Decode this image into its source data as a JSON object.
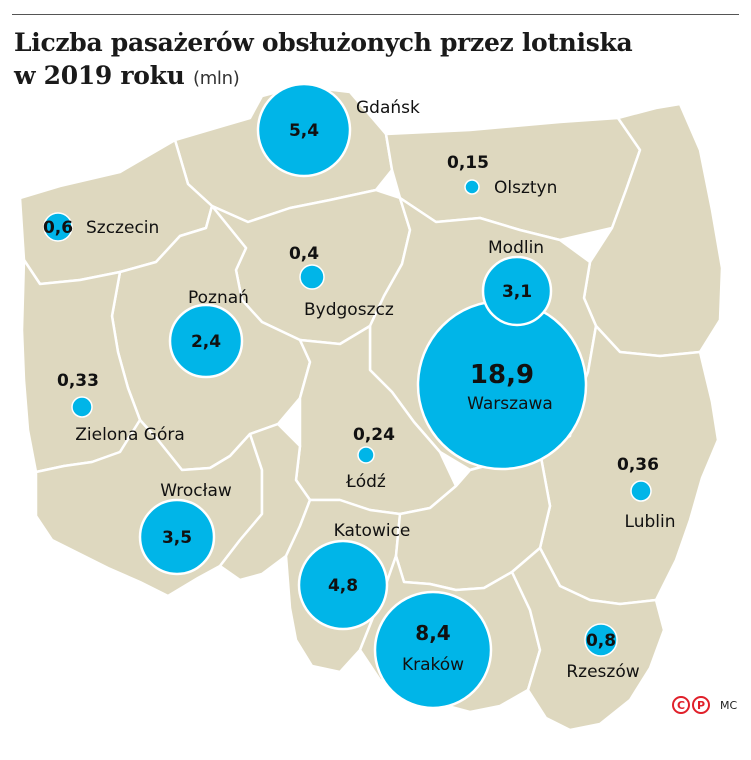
{
  "title": {
    "line1": "Liczba pasażerów obsłużonych przez lotniska",
    "line2": "w 2019 roku",
    "unit": "(mln)"
  },
  "colors": {
    "land": "#ded8bf",
    "border": "#ffffff",
    "bubble": "#00b5e8",
    "bubble_stroke": "#ffffff",
    "text": "#111111"
  },
  "chart_data": {
    "type": "map-bubbles",
    "unit": "mln",
    "points": [
      {
        "name": "Gdańsk",
        "value_label": "5,4",
        "value": 5.4
      },
      {
        "name": "Olsztyn",
        "value_label": "0,15",
        "value": 0.15
      },
      {
        "name": "Szczecin",
        "value_label": "0,6",
        "value": 0.6
      },
      {
        "name": "Bydgoszcz",
        "value_label": "0,4",
        "value": 0.4
      },
      {
        "name": "Modlin",
        "value_label": "3,1",
        "value": 3.1
      },
      {
        "name": "Poznań",
        "value_label": "2,4",
        "value": 2.4
      },
      {
        "name": "Warszawa",
        "value_label": "18,9",
        "value": 18.9
      },
      {
        "name": "Zielona Góra",
        "value_label": "0,33",
        "value": 0.33
      },
      {
        "name": "Łódź",
        "value_label": "0,24",
        "value": 0.24
      },
      {
        "name": "Lublin",
        "value_label": "0,36",
        "value": 0.36
      },
      {
        "name": "Wrocław",
        "value_label": "3,5",
        "value": 3.5
      },
      {
        "name": "Katowice",
        "value_label": "4,8",
        "value": 4.8
      },
      {
        "name": "Kraków",
        "value_label": "8,4",
        "value": 8.4
      },
      {
        "name": "Rzeszów",
        "value_label": "0,8",
        "value": 0.8
      }
    ]
  },
  "credit": {
    "symbol1": "C",
    "symbol2": "P",
    "author": "MC"
  }
}
